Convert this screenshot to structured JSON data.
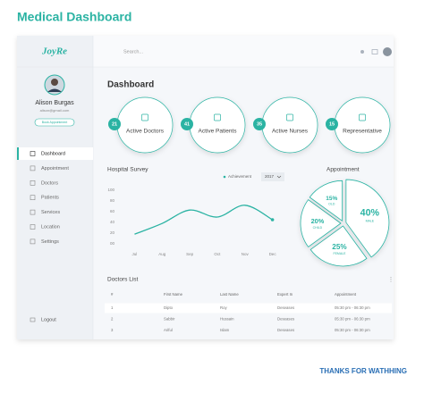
{
  "title": "Medical Dashboard",
  "sidebar": {
    "logo": "JoyRe",
    "profile": {
      "name": "Alison Burgas",
      "email": "alison@gmail.com",
      "button": "Book Appointment"
    },
    "nav": [
      "Dashboard",
      "Appointment",
      "Doctors",
      "Patients",
      "Services",
      "Location",
      "Settings"
    ],
    "logout": "Logout"
  },
  "topbar": {
    "search": "Search..."
  },
  "heading": "Dashboard",
  "stats": [
    {
      "value": 21,
      "label": "Active Doctors"
    },
    {
      "value": 41,
      "label": "Active Patients"
    },
    {
      "value": 35,
      "label": "Active Nurses"
    },
    {
      "value": 15,
      "label": "Representative"
    }
  ],
  "chart_data": [
    {
      "type": "line",
      "title": "Hospital Survey",
      "dropdown": "2017",
      "categories": [
        "Jul",
        "Aug",
        "Sep",
        "Oct",
        "Nov",
        "Dec"
      ],
      "series": [
        {
          "name": "Achievement",
          "color": "#2bb3a3",
          "values": [
            18,
            38,
            63,
            50,
            72,
            45
          ]
        }
      ],
      "ylim": [
        0,
        100
      ],
      "yticks": [
        {
          "value": 0,
          "label": "00"
        },
        20,
        40,
        60,
        80,
        100
      ],
      "grid": false
    },
    {
      "type": "pie",
      "title": "Appointment",
      "categories": [
        "MALE",
        "FEMALE",
        "CHILD",
        "OLD"
      ],
      "values": [
        40,
        25,
        20,
        15
      ],
      "value_labels": [
        "40%",
        "25%",
        "20%",
        "15%"
      ],
      "color": "#ffffff",
      "edge_color": "#2bb3a3"
    }
  ],
  "doctors": {
    "title": "Doctors List",
    "columns": [
      "#",
      "First Name",
      "Last Name",
      "Expert In",
      "Appointment"
    ],
    "rows": [
      [
        "1",
        "Dipto",
        "Roy",
        "Deseases",
        "05:30 pm - 06:30 pm"
      ],
      [
        "2",
        "Sabbir",
        "Hussain",
        "Deseases",
        "05:30 pm - 06:30 pm"
      ],
      [
        "3",
        "Ariful",
        "Islam",
        "Deseases",
        "05:30 pm - 06:30 pm"
      ]
    ]
  },
  "footer": "THANKS FOR WATHHING"
}
